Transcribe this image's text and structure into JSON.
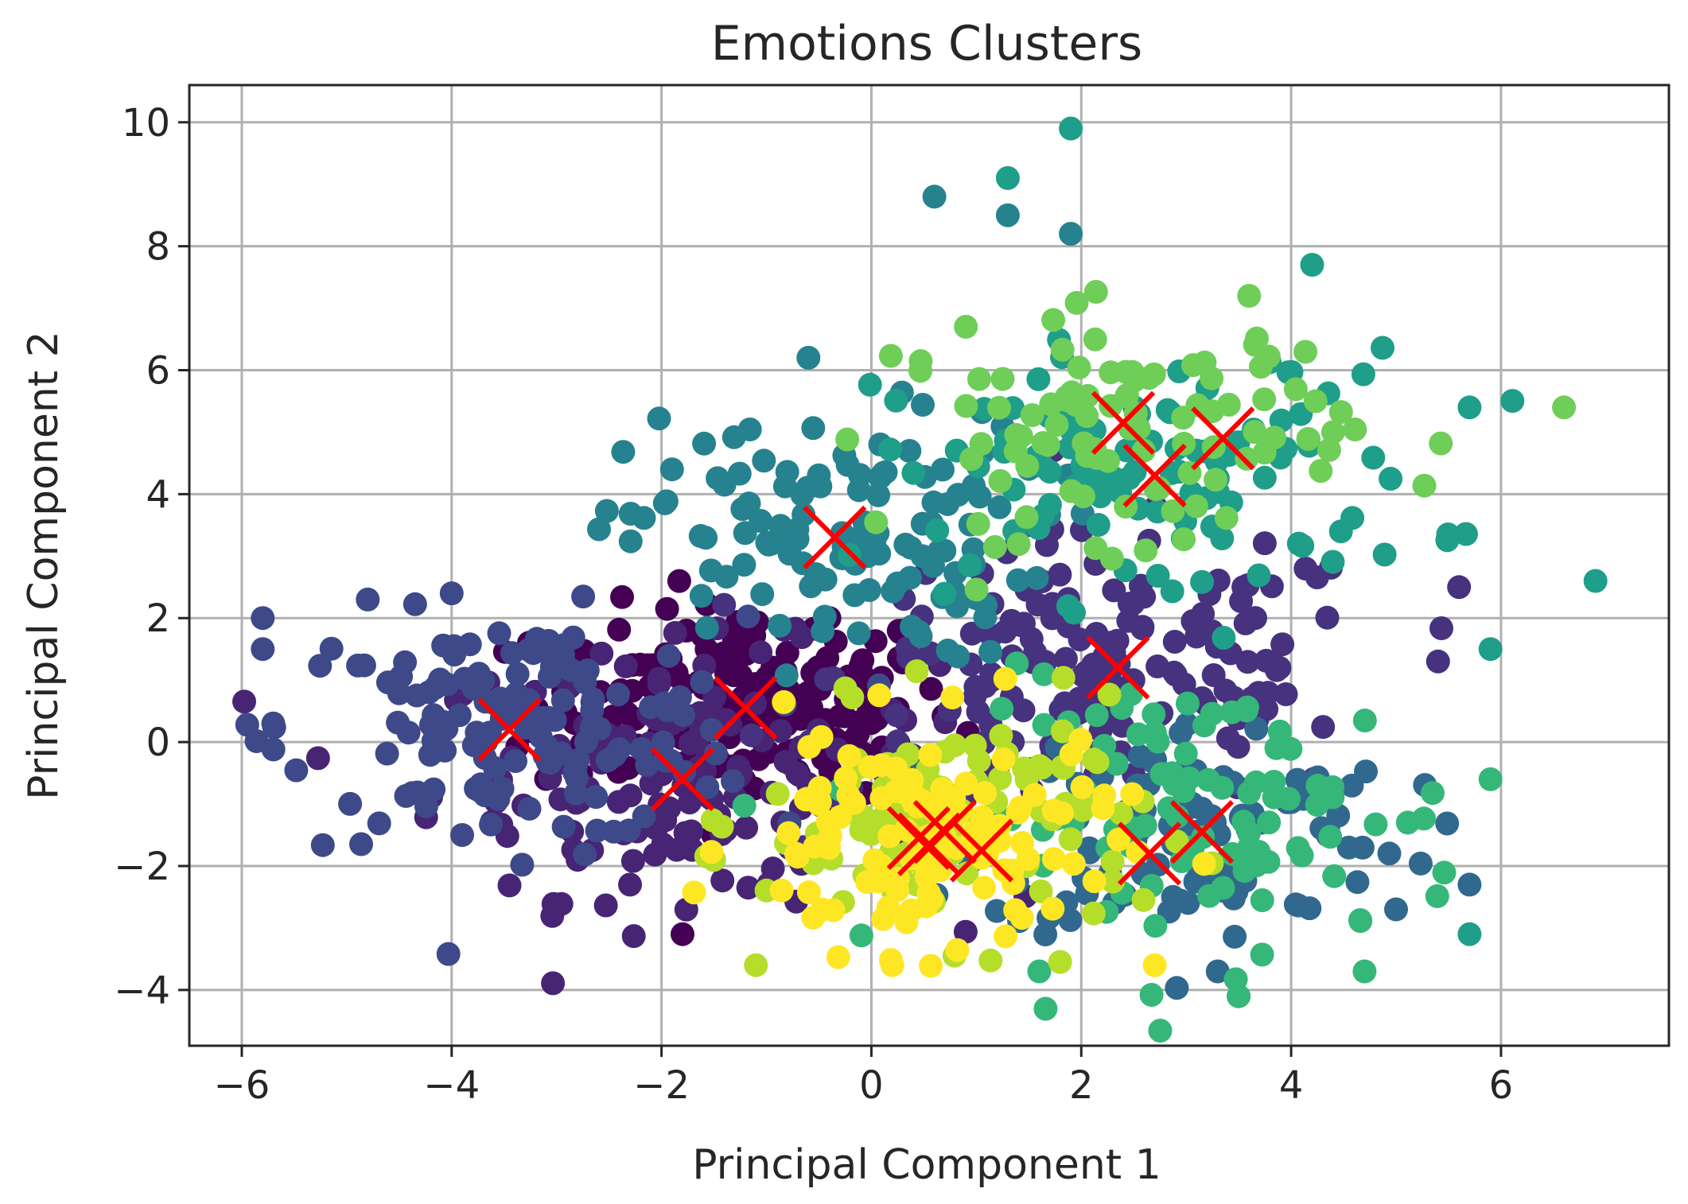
{
  "chart_data": {
    "type": "scatter",
    "title": "Emotions Clusters",
    "xlabel": "Principal Component 1",
    "ylabel": "Principal Component 2",
    "xlim": [
      -6.5,
      7.6
    ],
    "ylim": [
      -4.9,
      10.6
    ],
    "xticks": [
      -6,
      -4,
      -2,
      0,
      2,
      4,
      6
    ],
    "xtick_labels": [
      "−6",
      "−4",
      "−2",
      "0",
      "2",
      "4",
      "6"
    ],
    "yticks": [
      -4,
      -2,
      0,
      2,
      4,
      6,
      8,
      10
    ],
    "ytick_labels": [
      "−4",
      "−2",
      "0",
      "2",
      "4",
      "6",
      "8",
      "10"
    ],
    "grid": true,
    "colormap": "viridis",
    "marker": "circle",
    "centroid_marker": "x",
    "centroid_color": "#ff0000",
    "clusters": [
      {
        "color": "#440154",
        "center": [
          -1.2,
          0.6
        ],
        "spread": [
          1.0,
          0.8
        ],
        "n": 170,
        "extra": [
          [
            -0.4,
            2.0
          ],
          [
            -1.5,
            -1.9
          ],
          [
            -1.8,
            -3.1
          ]
        ]
      },
      {
        "color": "#482475",
        "center": [
          -1.8,
          -0.5
        ],
        "spread": [
          1.2,
          1.0
        ],
        "n": 150,
        "extra": [
          [
            -2.8,
            -1.9
          ],
          [
            -2.3,
            -2.3
          ]
        ]
      },
      {
        "color": "#46327e",
        "center": [
          2.3,
          1.1
        ],
        "spread": [
          1.3,
          1.1
        ],
        "n": 160,
        "extra": [
          [
            5.4,
            1.3
          ],
          [
            5.6,
            2.5
          ],
          [
            3.0,
            3.8
          ],
          [
            1.5,
            3.5
          ]
        ]
      },
      {
        "color": "#3e4989",
        "center": [
          -3.4,
          0.2
        ],
        "spread": [
          1.1,
          0.9
        ],
        "n": 150,
        "extra": [
          [
            -5.8,
            2.0
          ],
          [
            -5.8,
            1.5
          ],
          [
            -5.7,
            0.3
          ],
          [
            -4.8,
            2.3
          ],
          [
            -4.0,
            2.4
          ],
          [
            -3.9,
            -1.5
          ]
        ]
      },
      {
        "color": "#31688e",
        "center": [
          3.1,
          -1.4
        ],
        "spread": [
          1.0,
          0.9
        ],
        "n": 110,
        "extra": [
          [
            5.7,
            -2.3
          ],
          [
            5.0,
            -2.7
          ],
          [
            3.3,
            -3.7
          ],
          [
            3.5,
            -4.1
          ]
        ]
      },
      {
        "color": "#26828e",
        "center": [
          -0.35,
          3.3
        ],
        "spread": [
          1.0,
          1.0
        ],
        "n": 130,
        "extra": [
          [
            -0.6,
            6.2
          ],
          [
            0.6,
            8.8
          ],
          [
            1.3,
            8.5
          ],
          [
            1.9,
            8.2
          ],
          [
            -1.9,
            4.4
          ]
        ]
      },
      {
        "color": "#1f9e89",
        "center": [
          2.7,
          4.3
        ],
        "spread": [
          1.3,
          1.0
        ],
        "n": 110,
        "extra": [
          [
            1.9,
            9.9
          ],
          [
            1.3,
            9.1
          ],
          [
            4.2,
            7.7
          ],
          [
            6.9,
            2.6
          ],
          [
            5.9,
            1.5
          ],
          [
            5.7,
            -3.1
          ],
          [
            5.7,
            5.4
          ]
        ]
      },
      {
        "color": "#35b779",
        "center": [
          3.3,
          -1.2
        ],
        "spread": [
          1.2,
          1.1
        ],
        "n": 100,
        "extra": [
          [
            5.9,
            -0.6
          ],
          [
            4.7,
            -3.7
          ],
          [
            3.5,
            -4.1
          ],
          [
            1.6,
            -3.7
          ]
        ]
      },
      {
        "color": "#6ece58",
        "center": [
          2.4,
          5.1
        ],
        "spread": [
          1.1,
          0.9
        ],
        "n": 100,
        "extra": [
          [
            6.6,
            5.4
          ],
          [
            0.9,
            6.7
          ],
          [
            3.6,
            7.2
          ],
          [
            4.4,
            5.0
          ]
        ]
      },
      {
        "color": "#b5de2b",
        "center": [
          0.8,
          -1.3
        ],
        "spread": [
          0.9,
          0.9
        ],
        "n": 110,
        "extra": [
          [
            -1.1,
            -3.6
          ],
          [
            -1.5,
            -1.9
          ]
        ]
      },
      {
        "color": "#fde725",
        "center": [
          0.5,
          -1.6
        ],
        "spread": [
          0.9,
          0.9
        ],
        "n": 120,
        "extra": [
          [
            0.2,
            -3.6
          ],
          [
            2.7,
            -3.6
          ]
        ]
      }
    ],
    "centroids": [
      [
        -3.45,
        0.2
      ],
      [
        -1.2,
        0.55
      ],
      [
        -1.8,
        -0.6
      ],
      [
        -0.35,
        3.3
      ],
      [
        0.45,
        -1.55
      ],
      [
        0.55,
        -1.65
      ],
      [
        0.7,
        -1.45
      ],
      [
        1.05,
        -1.75
      ],
      [
        2.35,
        1.2
      ],
      [
        2.4,
        5.15
      ],
      [
        2.7,
        4.3
      ],
      [
        3.35,
        4.9
      ],
      [
        2.65,
        -1.8
      ],
      [
        3.15,
        -1.45
      ]
    ]
  }
}
